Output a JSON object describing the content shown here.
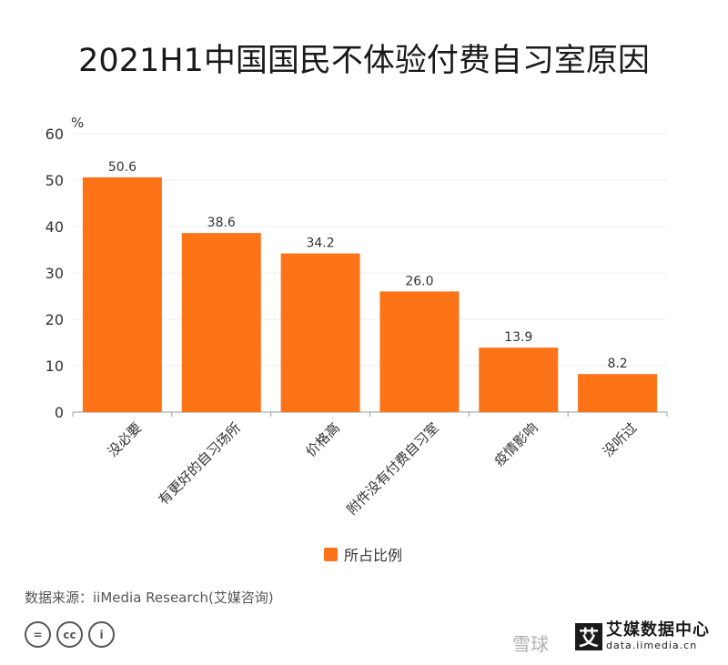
{
  "title": "2021H1中国国民不体验付费自习室原因",
  "chart_data": {
    "type": "bar",
    "categories": [
      "没必要",
      "有更好的自习场所",
      "价格高",
      "附件没有付费自习室",
      "疫情影响",
      "没听过"
    ],
    "series": [
      {
        "name": "所占比例",
        "values": [
          50.6,
          38.6,
          34.2,
          26.0,
          13.9,
          8.2
        ]
      }
    ],
    "value_labels": [
      "50.6",
      "38.6",
      "34.2",
      "26.0",
      "13.9",
      "8.2"
    ],
    "yunit": "%",
    "ylim": [
      0,
      60
    ],
    "yticks": [
      0,
      10,
      20,
      30,
      40,
      50,
      60
    ],
    "grid": true,
    "legend": "bottom-center",
    "color": "#fd7318"
  },
  "source": "数据来源：iiMedia Research(艾媒咨询)",
  "license_icons": [
    "=",
    "cc",
    "i"
  ],
  "brand": {
    "mark": "艾",
    "name": "艾媒数据中心",
    "url": "data.iimedia.cn"
  },
  "watermark": "雪球"
}
